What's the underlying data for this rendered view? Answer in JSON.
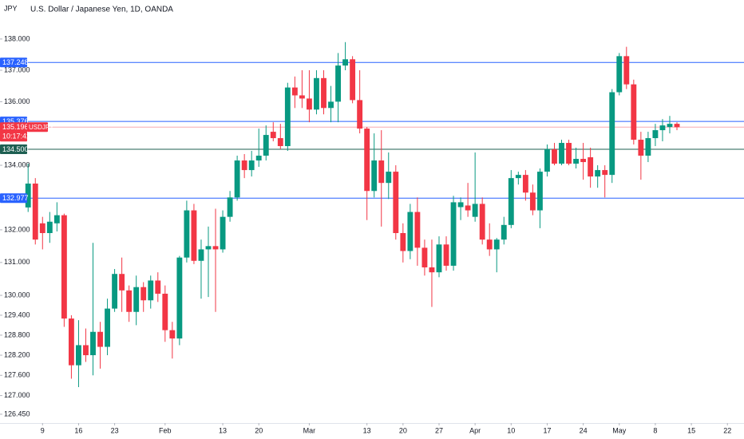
{
  "chart_data": {
    "type": "candlestick",
    "title": "U.S. Dollar / Japanese Yen, 1D, OANDA",
    "axis_unit": "JPY",
    "symbol": "USDJPY",
    "countdown": "10:17:42",
    "log_scale": true,
    "up_color": "#089981",
    "down_color": "#f23645",
    "ylim": [
      126.19,
      139.26
    ],
    "yticks": [
      {
        "value": 138,
        "label": "138.000"
      },
      {
        "value": 137,
        "label": "137.000"
      },
      {
        "value": 136,
        "label": "136.000"
      },
      {
        "value": 134,
        "label": "134.000"
      },
      {
        "value": 132,
        "label": "132.000"
      },
      {
        "value": 131,
        "label": "131.000"
      },
      {
        "value": 130,
        "label": "130.000"
      },
      {
        "value": 129.4,
        "label": "129.400"
      },
      {
        "value": 128.8,
        "label": "128.800"
      },
      {
        "value": 128.2,
        "label": "128.200"
      },
      {
        "value": 127.6,
        "label": "127.600"
      },
      {
        "value": 127,
        "label": "127.000"
      },
      {
        "value": 126.45,
        "label": "126.450"
      }
    ],
    "xlim": [
      -3.9,
      99.3
    ],
    "xticks": [
      {
        "value": 2,
        "label": "9"
      },
      {
        "value": 7,
        "label": "16"
      },
      {
        "value": 12,
        "label": "23"
      },
      {
        "value": 19,
        "label": "Feb"
      },
      {
        "value": 27,
        "label": "13"
      },
      {
        "value": 32,
        "label": "20"
      },
      {
        "value": 39,
        "label": "Mar"
      },
      {
        "value": 47,
        "label": "13"
      },
      {
        "value": 52,
        "label": "20"
      },
      {
        "value": 57,
        "label": "27"
      },
      {
        "value": 62,
        "label": "Apr"
      },
      {
        "value": 67,
        "label": "10"
      },
      {
        "value": 72,
        "label": "17"
      },
      {
        "value": 77,
        "label": "24"
      },
      {
        "value": 82,
        "label": "May"
      },
      {
        "value": 87,
        "label": "8"
      },
      {
        "value": 92,
        "label": "15"
      },
      {
        "value": 97,
        "label": "22"
      }
    ],
    "price_lines": [
      {
        "value": 137.248,
        "label": "137.248",
        "color": "#2962ff"
      },
      {
        "value": 135.376,
        "label": "135.376",
        "color": "#2962ff"
      },
      {
        "value": 134.5,
        "label": "134.500",
        "color": "#1e5f52"
      },
      {
        "value": 132.977,
        "label": "132.977",
        "color": "#2962ff"
      }
    ],
    "last_price": {
      "value": 135.196,
      "label": "135.196",
      "color": "#f23645",
      "line_color": "#f7a8b0"
    },
    "open": [
      132.69,
      133.43,
      132.2,
      131.9,
      132.2,
      132.45,
      129.3,
      127.9,
      128.5,
      128.2,
      128.9,
      128.45,
      129.6,
      130.65,
      130.15,
      129.5,
      130.25,
      129.85,
      130.45,
      130.05,
      128.95,
      128.7,
      131.15,
      132.6,
      131.05,
      131.4,
      131.5,
      131.4,
      132.4,
      133.0,
      134.15,
      133.85,
      134.15,
      134.3,
      135.05,
      134.85,
      134.6,
      136.45,
      136.2,
      136.1,
      135.75,
      136.75,
      135.8,
      136.0,
      137.15,
      137.35,
      136.05,
      135.15,
      133.2,
      134.15,
      133.45,
      133.8,
      131.9,
      131.35,
      132.55,
      131.45,
      130.85,
      130.7,
      131.55,
      130.9,
      132.7,
      132.75,
      132.4,
      132.8,
      131.7,
      131.4,
      131.7,
      132.15,
      133.6,
      133.7,
      133.15,
      132.6,
      133.8,
      134.5,
      134.05,
      134.7,
      134.05,
      134.2,
      134.25,
      133.65,
      133.85,
      133.7,
      136.3,
      137.45,
      136.55,
      134.8,
      134.3,
      134.85,
      135.1,
      135.2,
      135.3
    ],
    "high": [
      134.05,
      133.6,
      132.4,
      132.55,
      132.85,
      132.5,
      129.4,
      129.25,
      129.0,
      131.6,
      129.2,
      129.9,
      130.8,
      131.15,
      130.3,
      130.6,
      130.4,
      130.6,
      130.7,
      130.3,
      129.2,
      131.2,
      132.9,
      132.8,
      131.7,
      132.1,
      132.65,
      132.6,
      133.2,
      134.3,
      134.35,
      134.45,
      135.15,
      135.25,
      135.35,
      135.3,
      136.6,
      136.8,
      137.0,
      137.0,
      137.0,
      137.0,
      136.5,
      137.55,
      137.9,
      137.45,
      137.0,
      135.2,
      135.0,
      135.1,
      134.4,
      134.0,
      132.2,
      132.8,
      133.0,
      131.7,
      131.7,
      131.8,
      131.8,
      133.05,
      133.0,
      133.45,
      134.4,
      133.0,
      132.2,
      131.75,
      132.4,
      133.85,
      133.8,
      133.85,
      133.4,
      133.9,
      134.65,
      134.7,
      134.8,
      134.8,
      134.55,
      134.7,
      134.55,
      134.0,
      134.0,
      136.4,
      137.55,
      137.75,
      136.7,
      135.05,
      135.05,
      135.3,
      135.45,
      135.55,
      135.35
    ],
    "low": [
      132.55,
      131.55,
      131.4,
      131.6,
      131.95,
      129.05,
      127.5,
      127.25,
      128.0,
      127.6,
      127.8,
      128.2,
      129.5,
      129.5,
      129.2,
      129.1,
      129.5,
      129.6,
      129.8,
      128.6,
      128.1,
      128.5,
      131.0,
      130.95,
      129.9,
      129.95,
      129.5,
      131.3,
      132.25,
      132.9,
      133.6,
      133.65,
      133.95,
      134.15,
      134.75,
      134.5,
      134.45,
      135.8,
      135.8,
      135.35,
      135.6,
      135.6,
      135.35,
      135.35,
      137.0,
      135.95,
      135.0,
      132.3,
      133.0,
      132.1,
      132.95,
      131.7,
      131.0,
      131.1,
      130.9,
      130.6,
      129.65,
      130.55,
      130.75,
      130.75,
      132.3,
      132.4,
      132.25,
      131.55,
      131.2,
      130.7,
      131.55,
      132.05,
      133.4,
      132.9,
      132.45,
      132.05,
      133.65,
      134.0,
      134.0,
      134.0,
      133.9,
      133.55,
      133.3,
      133.3,
      133.0,
      133.45,
      136.2,
      136.4,
      134.65,
      133.55,
      134.1,
      134.6,
      134.75,
      135.0,
      135.1
    ],
    "close": [
      133.43,
      131.7,
      131.9,
      132.25,
      132.45,
      129.3,
      127.9,
      128.5,
      128.2,
      128.9,
      128.45,
      129.6,
      130.65,
      130.15,
      129.5,
      130.25,
      129.85,
      130.45,
      130.05,
      128.95,
      128.7,
      131.15,
      132.6,
      131.05,
      131.4,
      131.5,
      131.4,
      132.4,
      133.0,
      134.15,
      133.85,
      134.15,
      134.3,
      134.95,
      134.85,
      134.6,
      136.45,
      136.2,
      136.1,
      135.75,
      136.75,
      135.8,
      136.0,
      137.15,
      137.35,
      136.05,
      135.15,
      133.2,
      134.15,
      133.45,
      133.8,
      131.9,
      131.35,
      132.55,
      131.45,
      130.85,
      130.7,
      131.55,
      130.9,
      132.85,
      132.85,
      132.6,
      132.8,
      131.7,
      131.4,
      131.7,
      132.15,
      133.6,
      133.7,
      133.15,
      132.6,
      133.8,
      134.5,
      134.05,
      134.7,
      134.05,
      134.2,
      134.1,
      133.65,
      133.85,
      133.7,
      136.3,
      137.45,
      136.55,
      134.8,
      134.3,
      134.85,
      135.1,
      135.25,
      135.3,
      135.196
    ]
  }
}
